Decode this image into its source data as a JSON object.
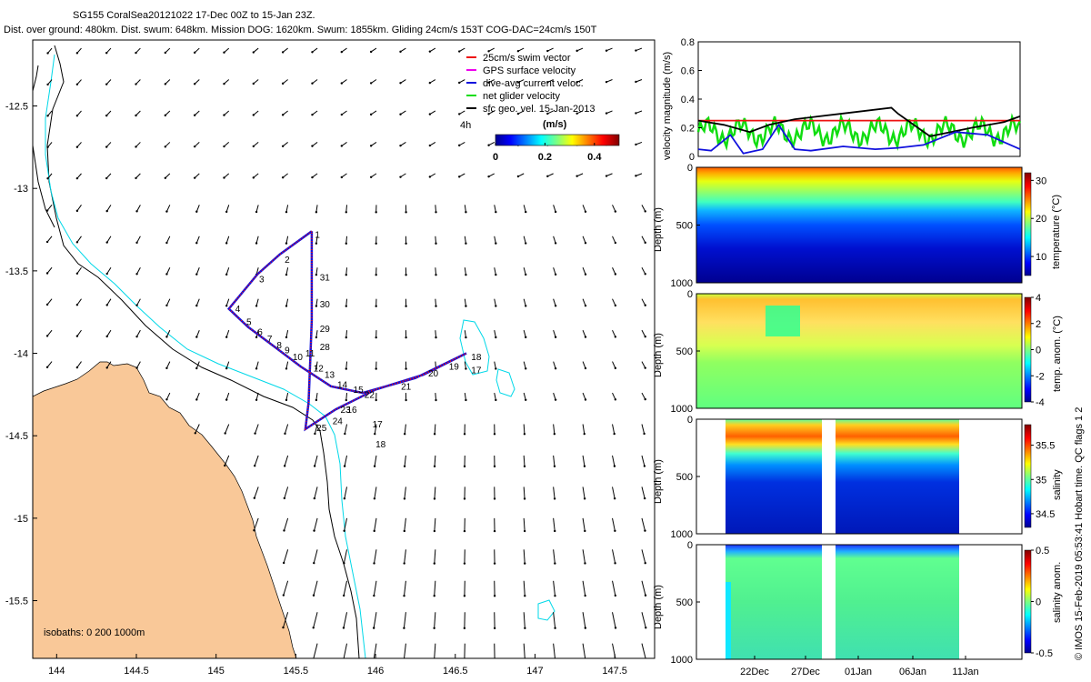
{
  "header": {
    "title": "SG155 CoralSea20121022 17-Dec 00Z to 15-Jan 23Z.",
    "subtitle": "Dist. over ground: 480km. Dist. swum: 648km. Mission DOG: 1620km. Swum: 1855km. Gliding 24cm/s 153T COG-DAC=24cm/s 150T"
  },
  "side_note": "© IMOS 15-Feb-2019 05:53:41 Hobart time. QC flags 1  2",
  "colors": {
    "land": "#f9c898",
    "coast": "#000000",
    "isobath200": "#00d8e8",
    "swim": "#ee1111",
    "gps": "#ee00ee",
    "dac": "#1111dd",
    "net": "#11dd11",
    "sfc": "#000000"
  },
  "chart_data": [
    {
      "type": "map",
      "xlim": [
        143.85,
        147.75
      ],
      "ylim": [
        -15.85,
        -12.1
      ],
      "x_ticks": [
        144,
        144.5,
        145,
        145.5,
        146,
        146.5,
        147,
        147.5
      ],
      "x_tick_labels": [
        "144",
        "144.5",
        "145",
        "145.5",
        "146",
        "146.5",
        "147",
        "147.5"
      ],
      "y_ticks": [
        -12.5,
        -13,
        -13.5,
        -14,
        -14.5,
        -15,
        -15.5
      ],
      "y_tick_labels": [
        "-12.5",
        "-13",
        "-13.5",
        "-14",
        "-14.5",
        "-15",
        "-15.5"
      ],
      "legend": [
        {
          "label": "25cm/s swim vector",
          "color_key": "swim"
        },
        {
          "label": "GPS surface velocity",
          "color_key": "gps"
        },
        {
          "label": "dive-avg current veloc.",
          "color_key": "dac"
        },
        {
          "label": "net glider velocity",
          "color_key": "net"
        },
        {
          "label": "sfc geo. vel. 15-Jan-2013",
          "color_key": "sfc"
        }
      ],
      "legend_extra": "4h",
      "colorbar": {
        "title": "(m/s)",
        "ticks": [
          0,
          0.2,
          0.4
        ],
        "tick_labels": [
          "0",
          "0.2",
          "0.4"
        ],
        "range": [
          0,
          0.5
        ]
      },
      "isobath_label": "isobaths: 0   200   1000m",
      "track": [
        [
          145.6,
          -13.26
        ],
        [
          145.4,
          -13.4
        ],
        [
          145.26,
          -13.52
        ],
        [
          145.08,
          -13.73
        ],
        [
          145.2,
          -13.84
        ],
        [
          145.38,
          -13.97
        ],
        [
          145.53,
          -14.08
        ],
        [
          145.72,
          -14.2
        ],
        [
          145.92,
          -14.24
        ],
        [
          146.25,
          -14.15
        ],
        [
          146.57,
          -14.0
        ],
        [
          146.3,
          -14.13
        ],
        [
          146.0,
          -14.22
        ],
        [
          145.75,
          -14.34
        ],
        [
          145.56,
          -14.46
        ],
        [
          145.58,
          -14.3
        ],
        [
          145.59,
          -14.05
        ],
        [
          145.6,
          -13.8
        ],
        [
          145.6,
          -13.26
        ]
      ],
      "day_labels": [
        {
          "t": "1",
          "lon": 145.62,
          "lat": -13.3
        },
        {
          "t": "2",
          "lon": 145.43,
          "lat": -13.45
        },
        {
          "t": "3",
          "lon": 145.27,
          "lat": -13.57
        },
        {
          "t": "4",
          "lon": 145.12,
          "lat": -13.75
        },
        {
          "t": "5",
          "lon": 145.19,
          "lat": -13.83
        },
        {
          "t": "6",
          "lon": 145.26,
          "lat": -13.89
        },
        {
          "t": "7",
          "lon": 145.32,
          "lat": -13.93
        },
        {
          "t": "8",
          "lon": 145.38,
          "lat": -13.97
        },
        {
          "t": "9",
          "lon": 145.43,
          "lat": -14.0
        },
        {
          "t": "10",
          "lon": 145.48,
          "lat": -14.04
        },
        {
          "t": "11",
          "lon": 145.56,
          "lat": -14.02
        },
        {
          "t": "12",
          "lon": 145.61,
          "lat": -14.11
        },
        {
          "t": "13",
          "lon": 145.68,
          "lat": -14.15
        },
        {
          "t": "14",
          "lon": 145.76,
          "lat": -14.21
        },
        {
          "t": "15",
          "lon": 145.86,
          "lat": -14.24
        },
        {
          "t": "16",
          "lon": 145.82,
          "lat": -14.36
        },
        {
          "t": "17",
          "lon": 145.98,
          "lat": -14.45
        },
        {
          "t": "18",
          "lon": 146.0,
          "lat": -14.57
        },
        {
          "t": "18",
          "lon": 146.6,
          "lat": -14.04
        },
        {
          "t": "17",
          "lon": 146.6,
          "lat": -14.12
        },
        {
          "t": "19",
          "lon": 146.46,
          "lat": -14.1
        },
        {
          "t": "20",
          "lon": 146.33,
          "lat": -14.14
        },
        {
          "t": "21",
          "lon": 146.16,
          "lat": -14.22
        },
        {
          "t": "22",
          "lon": 145.93,
          "lat": -14.27
        },
        {
          "t": "23",
          "lon": 145.78,
          "lat": -14.36
        },
        {
          "t": "24",
          "lon": 145.73,
          "lat": -14.43
        },
        {
          "t": "25",
          "lon": 145.63,
          "lat": -14.47
        },
        {
          "t": "28",
          "lon": 145.65,
          "lat": -13.98
        },
        {
          "t": "29",
          "lon": 145.65,
          "lat": -13.87
        },
        {
          "t": "30",
          "lon": 145.65,
          "lat": -13.72
        },
        {
          "t": "31",
          "lon": 145.65,
          "lat": -13.56
        }
      ]
    },
    {
      "type": "line",
      "ylabel": "velocity magnitude (m/s)",
      "ylim": [
        0,
        0.8
      ],
      "y_ticks": [
        0,
        0.2,
        0.4,
        0.6,
        0.8
      ],
      "y_tick_labels": [
        "0",
        "0.2",
        "0.4",
        "0.6",
        "0.8"
      ],
      "series": [
        {
          "name": "25cm/s swim (constant)",
          "color_key": "swim",
          "values": [
            0.25,
            0.25
          ]
        },
        {
          "name": "net glider speed",
          "color_key": "sfc",
          "x": [
            0,
            0.08,
            0.16,
            0.22,
            0.3,
            0.45,
            0.6,
            0.62,
            0.72,
            0.85,
            0.95,
            1.0
          ],
          "values": [
            0.25,
            0.22,
            0.17,
            0.22,
            0.26,
            0.3,
            0.34,
            0.3,
            0.14,
            0.2,
            0.24,
            0.28
          ]
        },
        {
          "name": "dive-avg current",
          "color_key": "dac",
          "x": [
            0,
            0.04,
            0.1,
            0.14,
            0.2,
            0.25,
            0.3,
            0.35,
            0.45,
            0.55,
            0.62,
            0.7,
            0.8,
            0.9,
            0.95,
            1.0
          ],
          "values": [
            0.05,
            0.04,
            0.15,
            0.02,
            0.05,
            0.22,
            0.05,
            0.04,
            0.07,
            0.05,
            0.06,
            0.08,
            0.17,
            0.15,
            0.1,
            0.05
          ]
        }
      ]
    },
    {
      "type": "heatmap",
      "ylabel": "Depth (m)",
      "ylim": [
        1000,
        0
      ],
      "y_tick_labels": [
        "0",
        "500",
        "1000"
      ],
      "cbar_label": "temperature (°C)",
      "cbar_range": [
        5,
        32
      ],
      "cbar_ticks": [
        10,
        20,
        30
      ],
      "cbar_tick_labels": [
        "10",
        "20",
        "30"
      ]
    },
    {
      "type": "heatmap",
      "ylabel": "Depth (m)",
      "ylim": [
        1000,
        0
      ],
      "y_tick_labels": [
        "0",
        "500",
        "1000"
      ],
      "cbar_label": "temp. anom. (°C)",
      "cbar_range": [
        -4,
        4
      ],
      "cbar_ticks": [
        -4,
        -2,
        0,
        2,
        4
      ],
      "cbar_tick_labels": [
        "-4",
        "-2",
        "0",
        "2",
        "4"
      ]
    },
    {
      "type": "heatmap",
      "ylabel": "Depth (m)",
      "ylim": [
        1000,
        0
      ],
      "y_tick_labels": [
        "0",
        "500",
        "1000"
      ],
      "cbar_label": "salinity",
      "cbar_range": [
        34.3,
        35.8
      ],
      "cbar_ticks": [
        34.5,
        35,
        35.5
      ],
      "cbar_tick_labels": [
        "34.5",
        "35",
        "35.5"
      ]
    },
    {
      "type": "heatmap",
      "ylabel": "Depth (m)",
      "ylim": [
        1000,
        0
      ],
      "y_tick_labels": [
        "0",
        "500",
        "1000"
      ],
      "cbar_label": "salinity anom.",
      "cbar_range": [
        -0.5,
        0.5
      ],
      "cbar_ticks": [
        -0.5,
        0,
        0.5
      ],
      "cbar_tick_labels": [
        "-0.5",
        "0",
        "0.5"
      ],
      "x_tick_labels": [
        "22Dec",
        "27Dec",
        "01Jan",
        "06Jan",
        "11Jan"
      ]
    }
  ]
}
